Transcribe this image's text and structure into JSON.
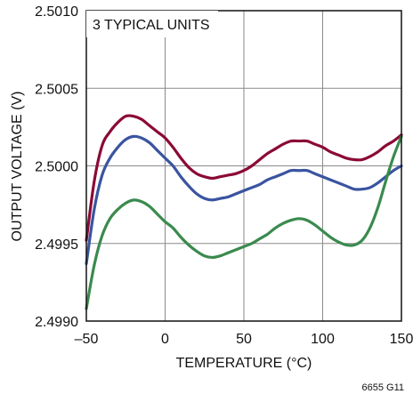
{
  "chart_data": {
    "type": "line",
    "title": "",
    "annotation": "3 TYPICAL UNITS",
    "xlabel": "TEMPERATURE (°C)",
    "ylabel": "OUTPUT VOLTAGE (V)",
    "xlim": [
      -50,
      150
    ],
    "ylim": [
      2.499,
      2.501
    ],
    "x_ticks": [
      -50,
      0,
      50,
      100,
      150
    ],
    "x_tick_labels": [
      "–50",
      "0",
      "50",
      "100",
      "150"
    ],
    "y_ticks": [
      2.499,
      2.4995,
      2.5,
      2.5005,
      2.501
    ],
    "y_tick_labels": [
      "2.4990",
      "2.4995",
      "2.5000",
      "2.5005",
      "2.5010"
    ],
    "grid": true,
    "figure_id": "6655 G11",
    "series": [
      {
        "color": "#8b0a35",
        "points": [
          [
            -50,
            2.49952
          ],
          [
            -45,
            2.4999
          ],
          [
            -40,
            2.50013
          ],
          [
            -35,
            2.50022
          ],
          [
            -30,
            2.50028
          ],
          [
            -25,
            2.50032
          ],
          [
            -20,
            2.50032
          ],
          [
            -15,
            2.5003
          ],
          [
            -10,
            2.50026
          ],
          [
            -5,
            2.50022
          ],
          [
            0,
            2.50018
          ],
          [
            5,
            2.50012
          ],
          [
            10,
            2.50005
          ],
          [
            15,
            2.49999
          ],
          [
            20,
            2.49995
          ],
          [
            25,
            2.49993
          ],
          [
            30,
            2.49992
          ],
          [
            35,
            2.49993
          ],
          [
            40,
            2.49994
          ],
          [
            45,
            2.49995
          ],
          [
            50,
            2.49997
          ],
          [
            55,
            2.5
          ],
          [
            60,
            2.50004
          ],
          [
            65,
            2.50008
          ],
          [
            70,
            2.50011
          ],
          [
            75,
            2.50014
          ],
          [
            80,
            2.50016
          ],
          [
            85,
            2.50016
          ],
          [
            90,
            2.50016
          ],
          [
            95,
            2.50014
          ],
          [
            100,
            2.50012
          ],
          [
            105,
            2.50009
          ],
          [
            110,
            2.50007
          ],
          [
            115,
            2.50005
          ],
          [
            120,
            2.50004
          ],
          [
            125,
            2.50004
          ],
          [
            130,
            2.50006
          ],
          [
            135,
            2.50009
          ],
          [
            140,
            2.50013
          ],
          [
            145,
            2.50016
          ],
          [
            150,
            2.5002
          ]
        ]
      },
      {
        "color": "#3a54a0",
        "points": [
          [
            -50,
            2.49937
          ],
          [
            -45,
            2.49972
          ],
          [
            -40,
            2.49994
          ],
          [
            -35,
            2.50005
          ],
          [
            -30,
            2.50012
          ],
          [
            -25,
            2.50017
          ],
          [
            -20,
            2.50019
          ],
          [
            -15,
            2.50018
          ],
          [
            -10,
            2.50015
          ],
          [
            -5,
            2.5001
          ],
          [
            0,
            2.50005
          ],
          [
            5,
            2.5
          ],
          [
            10,
            2.49993
          ],
          [
            15,
            2.49987
          ],
          [
            20,
            2.49982
          ],
          [
            25,
            2.49979
          ],
          [
            30,
            2.49978
          ],
          [
            35,
            2.49979
          ],
          [
            40,
            2.4998
          ],
          [
            45,
            2.49982
          ],
          [
            50,
            2.49984
          ],
          [
            55,
            2.49986
          ],
          [
            60,
            2.49988
          ],
          [
            65,
            2.49991
          ],
          [
            70,
            2.49993
          ],
          [
            75,
            2.49995
          ],
          [
            80,
            2.49997
          ],
          [
            85,
            2.49997
          ],
          [
            90,
            2.49997
          ],
          [
            95,
            2.49995
          ],
          [
            100,
            2.49993
          ],
          [
            105,
            2.49991
          ],
          [
            110,
            2.49989
          ],
          [
            115,
            2.49987
          ],
          [
            120,
            2.49985
          ],
          [
            125,
            2.49985
          ],
          [
            130,
            2.49986
          ],
          [
            135,
            2.49989
          ],
          [
            140,
            2.49993
          ],
          [
            145,
            2.49997
          ],
          [
            150,
            2.5
          ]
        ]
      },
      {
        "color": "#3a8a4e",
        "points": [
          [
            -50,
            2.49908
          ],
          [
            -45,
            2.49936
          ],
          [
            -40,
            2.49955
          ],
          [
            -35,
            2.49966
          ],
          [
            -30,
            2.49972
          ],
          [
            -25,
            2.49976
          ],
          [
            -20,
            2.49978
          ],
          [
            -15,
            2.49977
          ],
          [
            -10,
            2.49974
          ],
          [
            -5,
            2.49969
          ],
          [
            0,
            2.49964
          ],
          [
            5,
            2.4996
          ],
          [
            10,
            2.49954
          ],
          [
            15,
            2.49949
          ],
          [
            20,
            2.49945
          ],
          [
            25,
            2.49942
          ],
          [
            30,
            2.49941
          ],
          [
            35,
            2.49942
          ],
          [
            40,
            2.49944
          ],
          [
            45,
            2.49946
          ],
          [
            50,
            2.49948
          ],
          [
            55,
            2.4995
          ],
          [
            60,
            2.49953
          ],
          [
            65,
            2.49956
          ],
          [
            70,
            2.4996
          ],
          [
            75,
            2.49963
          ],
          [
            80,
            2.49965
          ],
          [
            85,
            2.49966
          ],
          [
            90,
            2.49965
          ],
          [
            95,
            2.49962
          ],
          [
            100,
            2.49958
          ],
          [
            105,
            2.49954
          ],
          [
            110,
            2.49951
          ],
          [
            115,
            2.49949
          ],
          [
            120,
            2.49949
          ],
          [
            125,
            2.49952
          ],
          [
            130,
            2.4996
          ],
          [
            135,
            2.49973
          ],
          [
            140,
            2.4999
          ],
          [
            145,
            2.50006
          ],
          [
            150,
            2.50019
          ]
        ]
      }
    ]
  }
}
